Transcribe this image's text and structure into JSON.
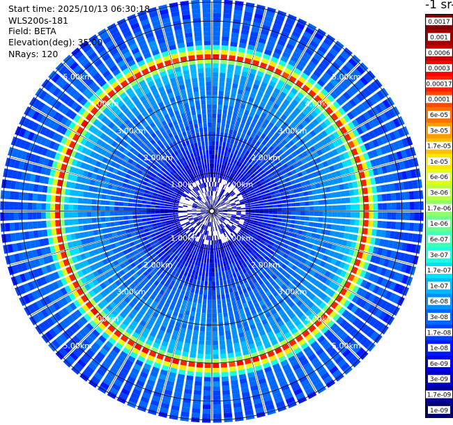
{
  "info": {
    "start_time": "Start time: 2025/10/13 06:30:18",
    "instrument": "WLS200s-181",
    "field": "Field: BETA",
    "elevation": "Elevation(deg): 35.00",
    "nrays": "NRays: 120"
  },
  "colorbar": {
    "units_visible": "-1 sr-",
    "labels": [
      "0.0017",
      "0.001",
      "0.0006",
      "0.0003",
      "0.00017",
      "0.0001",
      "6e-05",
      "3e-05",
      "1.7e-05",
      "1e-05",
      "6e-06",
      "3e-06",
      "1.7e-06",
      "1e-06",
      "6e-07",
      "3e-07",
      "1.7e-07",
      "1e-07",
      "6e-08",
      "3e-08",
      "1.7e-08",
      "1e-08",
      "6e-09",
      "3e-09",
      "1.7e-09",
      "1e-09"
    ],
    "colors": [
      "#800000",
      "#a00000",
      "#c80000",
      "#ff0000",
      "#ff2000",
      "#ff4a00",
      "#ff7000",
      "#ff9a00",
      "#ffc000",
      "#ffe800",
      "#e0ff18",
      "#b8ff40",
      "#90ff68",
      "#68ff90",
      "#40ffb8",
      "#18ffe0",
      "#00e0ff",
      "#00b8ff",
      "#0090ff",
      "#0068ff",
      "#0040ff",
      "#0018ff",
      "#0000e8",
      "#0000c0",
      "#000098",
      "#000070"
    ]
  },
  "range_ring_labels": [
    "1.00km",
    "2.00km",
    "3.00km",
    "4.00km",
    "5.00km"
  ],
  "chart_data": {
    "type": "heatmap",
    "projection": "polar (PPI scan)",
    "field": "BETA",
    "elevation_deg": 35.0,
    "nrays": 120,
    "range_rings_km": [
      1,
      2,
      3,
      4,
      5
    ],
    "max_range_km": 5.5,
    "radial_profile": [
      {
        "range_km": 0.0,
        "level_index": 22
      },
      {
        "range_km": 1.0,
        "level_index": 22
      },
      {
        "range_km": 1.5,
        "level_index": 21
      },
      {
        "range_km": 2.5,
        "level_index": 19
      },
      {
        "range_km": 3.5,
        "level_index": 18
      },
      {
        "range_km": 3.9,
        "level_index": 16
      },
      {
        "range_km": 4.05,
        "level_index": 3
      },
      {
        "range_km": 4.2,
        "level_index": 10
      },
      {
        "range_km": 4.4,
        "level_index": 19
      },
      {
        "range_km": 5.5,
        "level_index": 20
      }
    ]
  }
}
